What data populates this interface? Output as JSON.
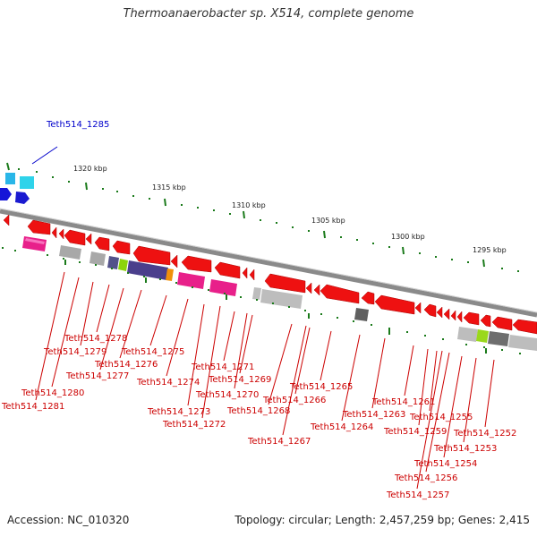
{
  "title": "Thermoanaerobacter sp. X514, complete genome",
  "footer": {
    "accession": "Accession: NC_010320",
    "summary": "Topology: circular; Length: 2,457,259 bp; Genes: 2,415"
  },
  "colors": {
    "highlight_label": "#0000cc",
    "gene_label": "#cc0000",
    "backbone": "#888888",
    "tick": "#1a7a1a"
  },
  "scale_labels": [
    "1320 kbp",
    "1315 kbp",
    "1310 kbp",
    "1305 kbp",
    "1300 kbp",
    "1295 kbp"
  ],
  "highlighted_gene": "Teth514_1285",
  "gene_labels": [
    "Teth514_1281",
    "Teth514_1280",
    "Teth514_1279",
    "Teth514_1278",
    "Teth514_1277",
    "Teth514_1276",
    "Teth514_1275",
    "Teth514_1274",
    "Teth514_1273",
    "Teth514_1272",
    "Teth514_1271",
    "Teth514_1270",
    "Teth514_1269",
    "Teth514_1268",
    "Teth514_1267",
    "Teth514_1266",
    "Teth514_1265",
    "Teth514_1264",
    "Teth514_1263",
    "Teth514_1261",
    "Teth514_1259",
    "Teth514_1257",
    "Teth514_1256",
    "Teth514_1255",
    "Teth514_1254",
    "Teth514_1253",
    "Teth514_1252"
  ]
}
